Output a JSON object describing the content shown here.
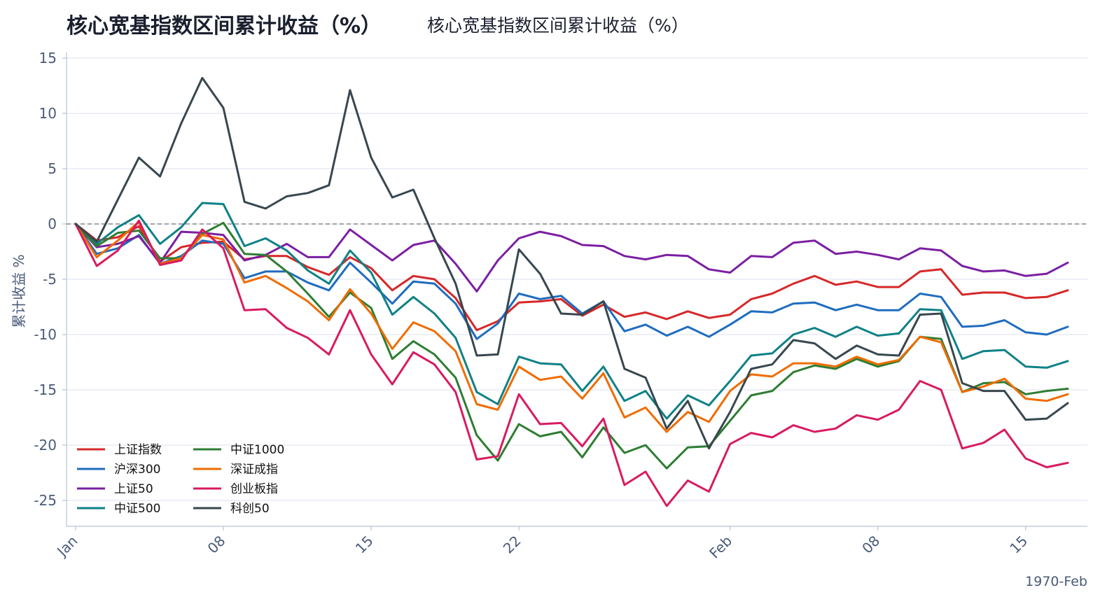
{
  "title": "核心宽基指数区间累计收益（%）",
  "subtitle": "核心宽基指数区间累计收益（%）",
  "chart_data": {
    "type": "line",
    "title": "核心宽基指数区间累计收益（%）",
    "subtitle": "核心宽基指数区间累计收益（%）",
    "xlabel": "",
    "ylabel": "累计收益 %",
    "ylim": [
      -27.5,
      15.5
    ],
    "yticks": [
      15,
      10,
      5,
      0,
      -5,
      -10,
      -15,
      -20,
      -25
    ],
    "xlim": [
      0,
      69.8
    ],
    "xticks": [
      {
        "x": 0,
        "label": "Jan"
      },
      {
        "x": 7,
        "label": "08"
      },
      {
        "x": 14,
        "label": "15"
      },
      {
        "x": 21,
        "label": "22"
      },
      {
        "x": 31,
        "label": "Feb"
      },
      {
        "x": 38,
        "label": "08"
      },
      {
        "x": 45,
        "label": "15"
      }
    ],
    "period_label": "1970-Feb",
    "x": [
      0,
      1,
      2,
      3,
      4,
      5,
      6,
      7,
      8,
      9,
      10,
      11,
      12,
      13,
      14,
      15,
      16,
      17,
      18,
      19,
      20,
      21,
      22,
      23,
      24,
      25,
      26,
      27,
      28,
      29,
      30,
      31,
      32,
      33,
      34,
      35,
      36,
      37,
      38,
      39,
      40,
      41,
      42,
      43,
      44,
      45,
      46,
      47
    ],
    "grid": true,
    "legend_position": "bottom-left",
    "zero_line": {
      "y": 0,
      "style": "dashed",
      "color": "#888888"
    },
    "series": [
      {
        "name": "上证指数",
        "color": "#d62728",
        "values": [
          0,
          -1.5,
          -1.2,
          -0.2,
          -3.4,
          -2.1,
          -1.7,
          -1.6,
          -3.2,
          -2.9,
          -2.9,
          -3.9,
          -4.6,
          -3.0,
          -4.0,
          -6.0,
          -4.7,
          -5.0,
          -6.7,
          -9.6,
          -8.8,
          -7.1,
          -7.0,
          -6.8,
          -8.3,
          -7.3,
          -8.4,
          -8.0,
          -8.6,
          -7.9,
          -8.5,
          -8.2,
          -6.8,
          -6.3,
          -5.4,
          -4.7,
          -5.5,
          -5.2,
          -5.7,
          -5.7,
          -4.3,
          -4.1,
          -6.4,
          -6.2,
          -6.2,
          -6.7,
          -6.6,
          -6.0
        ]
      },
      {
        "name": "沪深300",
        "color": "#1f6cbf",
        "values": [
          0,
          -2.7,
          -2.2,
          -1.0,
          -3.6,
          -2.9,
          -1.5,
          -1.8,
          -4.9,
          -4.3,
          -4.3,
          -5.3,
          -6.0,
          -3.5,
          -5.3,
          -7.2,
          -5.2,
          -5.4,
          -7.2,
          -10.4,
          -9.0,
          -6.3,
          -6.8,
          -6.5,
          -8.1,
          -7.0,
          -9.7,
          -9.1,
          -10.1,
          -9.3,
          -10.2,
          -9.1,
          -7.9,
          -8.0,
          -7.2,
          -7.1,
          -7.8,
          -7.3,
          -7.8,
          -7.8,
          -6.3,
          -6.6,
          -9.3,
          -9.2,
          -8.7,
          -9.8,
          -10.0,
          -9.3
        ]
      },
      {
        "name": "上证50",
        "color": "#7b1fa2",
        "values": [
          0,
          -2.1,
          -1.8,
          -1.1,
          -3.5,
          -0.7,
          -0.8,
          -1.0,
          -3.3,
          -2.8,
          -1.8,
          -3.0,
          -3.0,
          -0.5,
          -1.9,
          -3.3,
          -1.9,
          -1.5,
          -3.6,
          -6.1,
          -3.3,
          -1.3,
          -0.7,
          -1.1,
          -1.9,
          -2.0,
          -2.9,
          -3.2,
          -2.8,
          -2.9,
          -4.1,
          -4.4,
          -2.9,
          -3.0,
          -1.7,
          -1.5,
          -2.7,
          -2.5,
          -2.8,
          -3.2,
          -2.2,
          -2.4,
          -3.8,
          -4.3,
          -4.2,
          -4.7,
          -4.5,
          -3.5
        ]
      },
      {
        "name": "中证500",
        "color": "#0f8186",
        "values": [
          0,
          -1.8,
          -0.3,
          0.8,
          -1.8,
          -0.3,
          1.9,
          1.8,
          -2.0,
          -1.3,
          -2.4,
          -4.2,
          -5.4,
          -2.4,
          -4.4,
          -8.2,
          -6.6,
          -8.1,
          -10.3,
          -15.2,
          -16.3,
          -12.0,
          -12.6,
          -12.7,
          -15.1,
          -12.9,
          -16.0,
          -15.1,
          -17.6,
          -15.5,
          -16.4,
          -14.2,
          -11.9,
          -11.7,
          -10.0,
          -9.4,
          -10.2,
          -9.3,
          -10.1,
          -9.9,
          -7.7,
          -7.8,
          -12.2,
          -11.5,
          -11.4,
          -12.9,
          -13.0,
          -12.4
        ]
      },
      {
        "name": "中证1000",
        "color": "#2e7d32",
        "values": [
          0,
          -2.0,
          -0.8,
          -0.6,
          -3.1,
          -3.1,
          -0.9,
          0.1,
          -2.7,
          -2.8,
          -4.3,
          -6.3,
          -8.4,
          -6.2,
          -7.6,
          -12.2,
          -10.6,
          -11.8,
          -13.9,
          -19.1,
          -21.4,
          -18.1,
          -19.2,
          -18.8,
          -21.1,
          -18.4,
          -20.7,
          -20.0,
          -22.1,
          -20.2,
          -20.1,
          -17.8,
          -15.5,
          -15.1,
          -13.4,
          -12.8,
          -13.1,
          -12.2,
          -12.9,
          -12.4,
          -10.2,
          -10.4,
          -15.2,
          -14.4,
          -14.3,
          -15.4,
          -15.1,
          -14.9
        ]
      },
      {
        "name": "深证成指",
        "color": "#ef6c00",
        "values": [
          0,
          -3.0,
          -1.5,
          0.2,
          -3.6,
          -3.1,
          -1.0,
          -1.4,
          -5.3,
          -4.7,
          -5.8,
          -7.0,
          -8.7,
          -5.9,
          -8.1,
          -11.3,
          -8.9,
          -9.7,
          -11.5,
          -16.3,
          -16.8,
          -12.9,
          -14.1,
          -13.8,
          -15.8,
          -13.5,
          -17.5,
          -16.6,
          -18.8,
          -17.0,
          -17.9,
          -15.1,
          -13.6,
          -13.8,
          -12.6,
          -12.6,
          -12.9,
          -12.0,
          -12.7,
          -12.3,
          -10.2,
          -10.7,
          -15.2,
          -14.7,
          -14.0,
          -15.8,
          -16.0,
          -15.4
        ]
      },
      {
        "name": "创业板指",
        "color": "#d81b60",
        "values": [
          0,
          -3.8,
          -2.4,
          0.3,
          -3.7,
          -3.3,
          -0.5,
          -2.2,
          -7.8,
          -7.7,
          -9.4,
          -10.3,
          -11.8,
          -7.8,
          -11.8,
          -14.5,
          -11.6,
          -12.7,
          -15.2,
          -21.3,
          -21.0,
          -15.4,
          -18.1,
          -18.0,
          -20.1,
          -17.6,
          -23.6,
          -22.4,
          -25.5,
          -23.2,
          -24.2,
          -19.9,
          -18.9,
          -19.3,
          -18.2,
          -18.8,
          -18.5,
          -17.3,
          -17.7,
          -16.8,
          -14.2,
          -15.0,
          -20.3,
          -19.8,
          -18.6,
          -21.2,
          -22.0,
          -21.6
        ]
      },
      {
        "name": "科创50",
        "color": "#37474f",
        "values": [
          0,
          -1.6,
          2.2,
          6.0,
          4.3,
          9.1,
          13.2,
          10.5,
          2.0,
          1.4,
          2.5,
          2.8,
          3.5,
          12.1,
          6.0,
          2.4,
          3.1,
          -1.3,
          -5.4,
          -11.9,
          -11.8,
          -2.3,
          -4.5,
          -8.1,
          -8.2,
          -7.0,
          -13.1,
          -13.9,
          -18.5,
          -16.0,
          -20.3,
          -17.0,
          -13.1,
          -12.7,
          -10.5,
          -10.8,
          -12.2,
          -11.0,
          -11.8,
          -11.9,
          -8.2,
          -8.1,
          -14.4,
          -15.1,
          -15.1,
          -17.7,
          -17.6,
          -16.2
        ]
      }
    ]
  }
}
